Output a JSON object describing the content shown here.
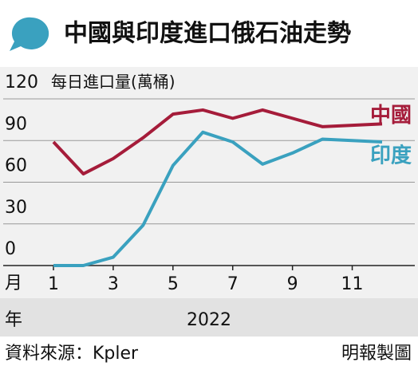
{
  "chart_data": {
    "type": "line",
    "title": "中國與印度進口俄石油走勢",
    "y_label": "每日進口量(萬桶)",
    "x_label": "月",
    "year_label": "年",
    "year": "2022",
    "source": "資料來源：Kpler",
    "credit": "明報製圖",
    "x": [
      1,
      2,
      3,
      4,
      5,
      6,
      7,
      8,
      9,
      10,
      11,
      12
    ],
    "series": [
      {
        "name": "中國",
        "color": "#a51c3a",
        "values": [
          89,
          66,
          77,
          92,
          109,
          112,
          106,
          112,
          106,
          100,
          101,
          102
        ]
      },
      {
        "name": "印度",
        "color": "#3aa1bf",
        "values": [
          0,
          0,
          6,
          29,
          72,
          96,
          89,
          73,
          81,
          91,
          90,
          89
        ]
      }
    ],
    "xlim": [
      1,
      12
    ],
    "xticks": [
      1,
      3,
      5,
      7,
      9,
      11
    ],
    "ylim": [
      0,
      120
    ],
    "yticks": [
      0,
      30,
      60,
      90,
      120
    ],
    "grid": true
  }
}
